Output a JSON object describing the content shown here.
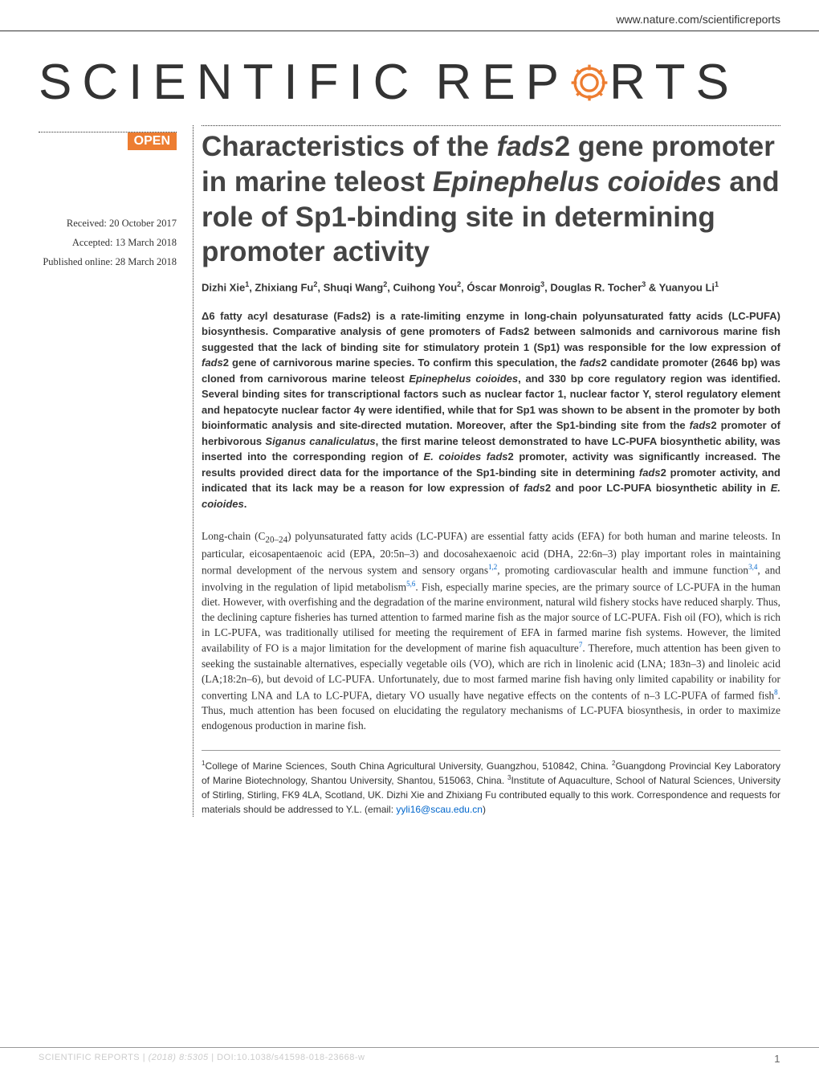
{
  "header": {
    "url": "www.nature.com/scientificreports"
  },
  "logo": {
    "text_before": "SCIENTIFIC",
    "text_middle": "REP",
    "text_after": "RTS",
    "gear_color": "#ed7d31"
  },
  "badge": {
    "label": "OPEN",
    "background": "#ed7d31"
  },
  "dates": {
    "received": "Received: 20 October 2017",
    "accepted": "Accepted: 13 March 2018",
    "published": "Published online: 28 March 2018"
  },
  "article": {
    "title_html": "Characteristics of the <span class='italic'>fads</span>2 gene promoter in marine teleost <span class='italic'>Epinephelus coioides</span> and role of Sp1-binding site in determining promoter activity",
    "authors_html": "Dizhi Xie<sup>1</sup>, Zhixiang Fu<sup>2</sup>, Shuqi Wang<sup>2</sup>, Cuihong You<sup>2</sup>, Óscar Monroig<sup>3</sup>, Douglas R. Tocher<sup>3</sup> &amp; Yuanyou Li<sup>1</sup>",
    "abstract_html": "Δ6 fatty acyl desaturase (Fads2) is a rate-limiting enzyme in long-chain polyunsaturated fatty acids (LC-PUFA) biosynthesis. Comparative analysis of gene promoters of Fads2 between salmonids and carnivorous marine fish suggested that the lack of binding site for stimulatory protein 1 (Sp1) was responsible for the low expression of <span class='italic'>fads</span>2 gene of carnivorous marine species. To confirm this speculation, the <span class='italic'>fads</span>2 candidate promoter (2646 bp) was cloned from carnivorous marine teleost <span class='italic'>Epinephelus coioides</span>, and 330 bp core regulatory region was identified. Several binding sites for transcriptional factors such as nuclear factor 1, nuclear factor Y, sterol regulatory element and hepatocyte nuclear factor 4γ were identified, while that for Sp1 was shown to be absent in the promoter by both bioinformatic analysis and site-directed mutation. Moreover, after the Sp1-binding site from the <span class='italic'>fads</span>2 promoter of herbivorous <span class='italic'>Siganus canaliculatus</span>, the first marine teleost demonstrated to have LC-PUFA biosynthetic ability, was inserted into the corresponding region of <span class='italic'>E. coioides fads</span>2 promoter, activity was significantly increased. The results provided direct data for the importance of the Sp1-binding site in determining <span class='italic'>fads</span>2 promoter activity, and indicated that its lack may be a reason for low expression of <span class='italic'>fads</span>2 and poor LC-PUFA biosynthetic ability in <span class='italic'>E. coioides</span>.",
    "body_html": "Long-chain (C<sub>20–24</sub>) polyunsaturated fatty acids (LC-PUFA) are essential fatty acids (EFA) for both human and marine teleosts. In particular, eicosapentaenoic acid (EPA, 20:5n–3) and docosahexaenoic acid (DHA, 22:6n–3) play important roles in maintaining normal development of the nervous system and sensory organs<sup class='ref-link'>1,2</sup>, promoting cardiovascular health and immune function<sup class='ref-link'>3,4</sup>, and involving in the regulation of lipid metabolism<sup class='ref-link'>5,6</sup>. Fish, especially marine species, are the primary source of LC-PUFA in the human diet. However, with overfishing and the degradation of the marine environment, natural wild fishery stocks have reduced sharply. Thus, the declining capture fisheries has turned attention to farmed marine fish as the major source of LC-PUFA. Fish oil (FO), which is rich in LC-PUFA, was traditionally utilised for meeting the requirement of EFA in farmed marine fish systems. However, the limited availability of FO is a major limitation for the development of marine fish aquaculture<sup class='ref-link'>7</sup>. Therefore, much attention has been given to seeking the sustainable alternatives, especially vegetable oils (VO), which are rich in linolenic acid (LNA; 183n–3) and linoleic acid (LA;18:2n–6), but devoid of LC-PUFA. Unfortunately, due to most farmed marine fish having only limited capability or inability for converting LNA and LA to LC-PUFA, dietary VO usually have negative effects on the contents of n–3 LC-PUFA of farmed fish<sup class='ref-link'>8</sup>. Thus, much attention has been focused on elucidating the regulatory mechanisms of LC-PUFA biosynthesis, in order to maximize endogenous production in marine fish.",
    "affiliations_html": "<sup>1</sup>College of Marine Sciences, South China Agricultural University, Guangzhou, 510842, China. <sup>2</sup>Guangdong Provincial Key Laboratory of Marine Biotechnology, Shantou University, Shantou, 515063, China. <sup>3</sup>Institute of Aquaculture, School of Natural Sciences, University of Stirling, Stirling, FK9 4LA, Scotland, UK. Dizhi Xie and Zhixiang Fu contributed equally to this work. Correspondence and requests for materials should be addressed to Y.L. (email: <span class='email-link'>yyli16@scau.edu.cn</span>)"
  },
  "footer": {
    "journal": "SCIENTIFIC REPORTS",
    "citation_html": "| <span class='italic'>(2018) 8:5305</span> | DOI:10.1038/s41598-018-23668-w",
    "page_number": "1"
  },
  "colors": {
    "accent": "#ed7d31",
    "link": "#0066cc",
    "text": "#333333",
    "footer_text": "#cccccc"
  }
}
